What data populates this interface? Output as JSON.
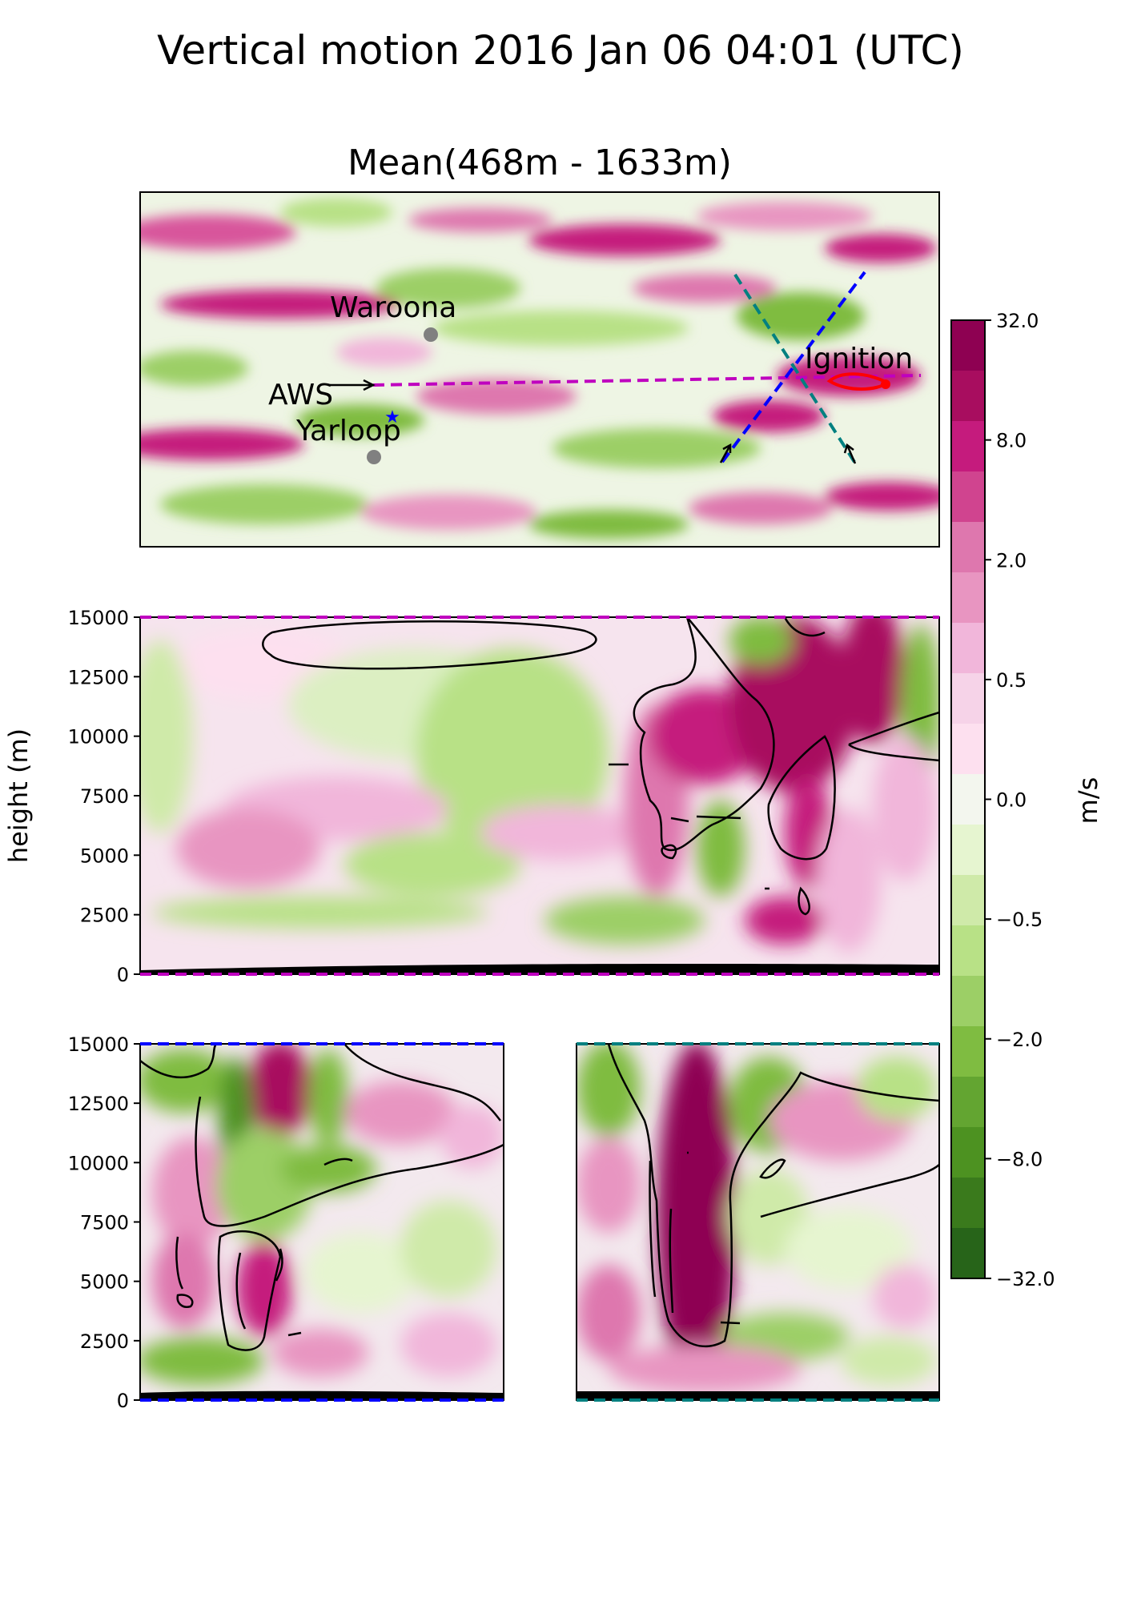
{
  "title": "Vertical motion 2016 Jan 06 04:01 (UTC)",
  "map": {
    "subtitle": "Mean(468m - 1633m)",
    "places": [
      {
        "name": "Waroona",
        "marker": "gray-dot"
      },
      {
        "name": "Yarloop",
        "marker": "gray-dot"
      },
      {
        "name": "AWS",
        "marker": "blue-star"
      },
      {
        "name": "Ignition",
        "marker": "red-ignition-mark"
      }
    ],
    "transect_colors": {
      "main": "#bf00bf",
      "diag1": "#0000ff",
      "diag2": "#008080"
    },
    "fire_color": "#ff0000"
  },
  "chart_data": [
    {
      "type": "heatmap",
      "panel": "map",
      "title": "Mean(468m - 1633m)",
      "quantity": "vertical motion",
      "units": "m/s"
    },
    {
      "type": "heatmap",
      "panel": "transect-main",
      "ylabel": "height (m)",
      "ylim": [
        0,
        15000
      ],
      "yticks": [
        0,
        2500,
        5000,
        7500,
        10000,
        12500,
        15000
      ],
      "border_color": "#bf00bf"
    },
    {
      "type": "heatmap",
      "panel": "transect-diag1",
      "ylim": [
        0,
        15000
      ],
      "yticks": [
        0,
        2500,
        5000,
        7500,
        10000,
        12500,
        15000
      ],
      "border_color": "#0000ff"
    },
    {
      "type": "heatmap",
      "panel": "transect-diag2",
      "ylim": [
        0,
        15000
      ],
      "border_color": "#008080"
    }
  ],
  "colorbar": {
    "label": "m/s",
    "ticks": [
      "32.0",
      "8.0",
      "2.0",
      "0.5",
      "0.0",
      "−0.5",
      "−2.0",
      "−8.0",
      "−32.0"
    ],
    "bands": [
      "#8e0152",
      "#a80d5f",
      "#c51b7d",
      "#d0448f",
      "#de77ae",
      "#e895c1",
      "#f1b6da",
      "#f6d3e8",
      "#fde0ef",
      "#f3f6ee",
      "#e6f5d0",
      "#cfeaa9",
      "#b8e186",
      "#9ccf66",
      "#7fbc41",
      "#63a531",
      "#4d9221",
      "#3a7a1c",
      "#276419"
    ]
  }
}
